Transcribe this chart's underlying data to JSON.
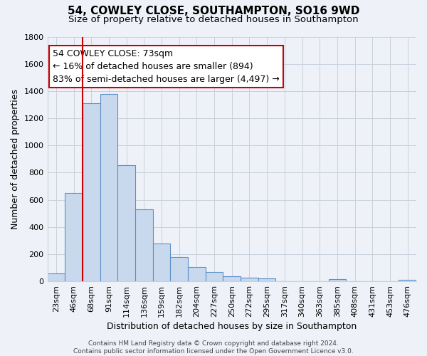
{
  "title1": "54, COWLEY CLOSE, SOUTHAMPTON, SO16 9WD",
  "title2": "Size of property relative to detached houses in Southampton",
  "xlabel": "Distribution of detached houses by size in Southampton",
  "ylabel": "Number of detached properties",
  "categories": [
    "23sqm",
    "46sqm",
    "68sqm",
    "91sqm",
    "114sqm",
    "136sqm",
    "159sqm",
    "182sqm",
    "204sqm",
    "227sqm",
    "250sqm",
    "272sqm",
    "295sqm",
    "317sqm",
    "340sqm",
    "363sqm",
    "385sqm",
    "408sqm",
    "431sqm",
    "453sqm",
    "476sqm"
  ],
  "values": [
    58,
    648,
    1310,
    1380,
    855,
    530,
    280,
    180,
    105,
    68,
    35,
    25,
    20,
    0,
    0,
    0,
    18,
    0,
    0,
    0,
    12
  ],
  "bar_color": "#c9d9ed",
  "bar_edge_color": "#5b8fc9",
  "bar_linewidth": 0.8,
  "vline_x": 2.0,
  "vline_color": "#cc0000",
  "annotation_text": "54 COWLEY CLOSE: 73sqm\n← 16% of detached houses are smaller (894)\n83% of semi-detached houses are larger (4,497) →",
  "annotation_box_color": "#ffffff",
  "annotation_box_edge": "#cc0000",
  "ylim": [
    0,
    1800
  ],
  "yticks": [
    0,
    200,
    400,
    600,
    800,
    1000,
    1200,
    1400,
    1600,
    1800
  ],
  "grid_color": "#c8d0dc",
  "bg_color": "#eef2f8",
  "footer": "Contains HM Land Registry data © Crown copyright and database right 2024.\nContains public sector information licensed under the Open Government Licence v3.0.",
  "title1_fontsize": 11,
  "title2_fontsize": 9.5,
  "xlabel_fontsize": 9,
  "ylabel_fontsize": 9,
  "tick_fontsize": 8,
  "annotation_fontsize": 9,
  "footer_fontsize": 6.5
}
